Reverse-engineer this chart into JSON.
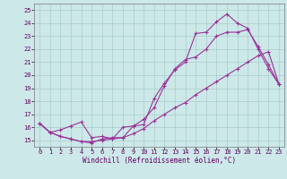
{
  "xlabel": "Windchill (Refroidissement éolien,°C)",
  "bg_color": "#cce8e8",
  "grid_color": "#aacccc",
  "line_color": "#993399",
  "xlim": [
    -0.5,
    23.5
  ],
  "ylim": [
    14.5,
    25.5
  ],
  "yticks": [
    15,
    16,
    17,
    18,
    19,
    20,
    21,
    22,
    23,
    24,
    25
  ],
  "xticks": [
    0,
    1,
    2,
    3,
    4,
    5,
    6,
    7,
    8,
    9,
    10,
    11,
    12,
    13,
    14,
    15,
    16,
    17,
    18,
    19,
    20,
    21,
    22,
    23
  ],
  "series1_x": [
    0,
    1,
    2,
    3,
    4,
    5,
    6,
    7,
    8,
    9,
    10,
    11,
    12,
    13,
    14,
    15,
    16,
    17,
    18,
    19,
    20,
    21,
    22,
    23
  ],
  "series1_y": [
    16.3,
    15.6,
    15.3,
    15.1,
    14.9,
    14.8,
    15.1,
    15.2,
    15.2,
    16.1,
    16.2,
    18.2,
    19.4,
    20.4,
    21.0,
    23.2,
    23.3,
    24.1,
    24.7,
    24.0,
    23.6,
    22.0,
    20.5,
    19.3
  ],
  "series2_x": [
    0,
    1,
    2,
    3,
    4,
    5,
    6,
    7,
    8,
    9,
    10,
    11,
    12,
    13,
    14,
    15,
    16,
    17,
    18,
    19,
    20,
    21,
    22,
    23
  ],
  "series2_y": [
    16.3,
    15.6,
    15.8,
    16.1,
    16.4,
    15.2,
    15.3,
    15.1,
    16.0,
    16.1,
    16.6,
    17.5,
    19.2,
    20.5,
    21.2,
    21.4,
    22.0,
    23.0,
    23.3,
    23.3,
    23.5,
    22.2,
    20.8,
    19.3
  ],
  "series3_x": [
    0,
    1,
    2,
    3,
    4,
    5,
    6,
    7,
    8,
    9,
    10,
    11,
    12,
    13,
    14,
    15,
    16,
    17,
    18,
    19,
    20,
    21,
    22,
    23
  ],
  "series3_y": [
    16.3,
    15.6,
    15.3,
    15.1,
    14.9,
    14.9,
    15.0,
    15.1,
    15.2,
    15.5,
    15.9,
    16.5,
    17.0,
    17.5,
    17.9,
    18.5,
    19.0,
    19.5,
    20.0,
    20.5,
    21.0,
    21.5,
    21.8,
    19.3
  ],
  "tick_fontsize": 5.0,
  "xlabel_fontsize": 5.5
}
